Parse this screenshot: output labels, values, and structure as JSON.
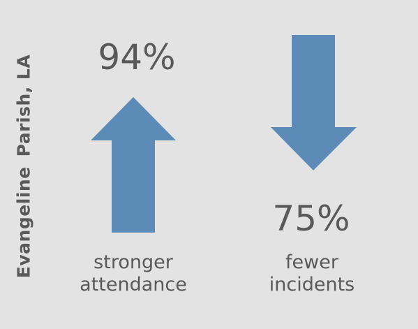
{
  "side_label": {
    "word1": "Evangeline",
    "word2": "Parish, LA"
  },
  "left_stat": {
    "value": "94%",
    "caption_line1": "stronger",
    "caption_line2": "attendance",
    "arrow_icon": "arrow-up-icon"
  },
  "right_stat": {
    "value": "75%",
    "caption_line1": "fewer",
    "caption_line2": "incidents",
    "arrow_icon": "arrow-down-icon"
  },
  "colors": {
    "background": "#e3e3e3",
    "arrow": "#5b8bb6",
    "text": "#595959"
  }
}
